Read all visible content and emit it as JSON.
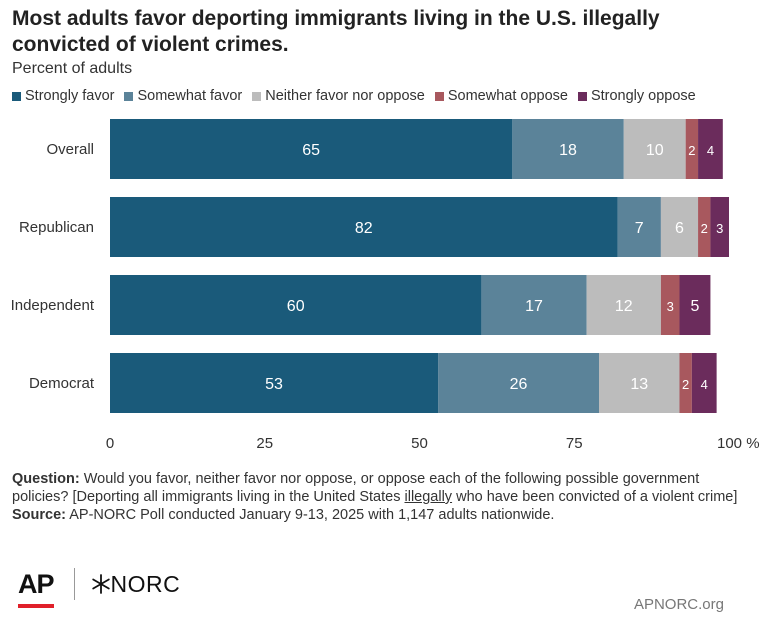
{
  "header": {
    "title": "Most adults favor deporting immigrants living in the U.S. illegally convicted of violent crimes.",
    "subtitle": "Percent of adults"
  },
  "chart_data": {
    "type": "bar",
    "orientation": "horizontal",
    "stacked": true,
    "categories": [
      "Overall",
      "Republican",
      "Independent",
      "Democrat"
    ],
    "series": [
      {
        "name": "Strongly favor",
        "color": "#1a5a7a",
        "values": [
          65,
          82,
          60,
          53
        ]
      },
      {
        "name": "Somewhat favor",
        "color": "#5b8399",
        "values": [
          18,
          7,
          17,
          26
        ]
      },
      {
        "name": "Neither favor nor oppose",
        "color": "#bcbcbc",
        "values": [
          10,
          6,
          12,
          13
        ]
      },
      {
        "name": "Somewhat oppose",
        "color": "#a8585e",
        "values": [
          2,
          2,
          3,
          2
        ]
      },
      {
        "name": "Strongly oppose",
        "color": "#6b2c5c",
        "values": [
          4,
          3,
          5,
          4
        ]
      }
    ],
    "xlim": [
      0,
      100
    ],
    "x_ticks": [
      "0",
      "25",
      "50",
      "75",
      "100 %"
    ],
    "legend_position": "top",
    "grid": false
  },
  "footnote": {
    "question_label": "Question:",
    "question_part1": "Would you favor, neither favor nor oppose, or oppose each of the following possible government policies? [Deporting all immigrants living in the United States",
    "question_underlined": "illegally",
    "question_part2": "who have been convicted of a violent crime]",
    "source_label": "Source:",
    "source_text": "AP-NORC Poll conducted January 9-13, 2025 with 1,147 adults nationwide."
  },
  "branding": {
    "ap_logo": "AP",
    "norc_logo": "NORC",
    "norc_icon": "asterisk-icon",
    "site": "APNORC.org"
  }
}
